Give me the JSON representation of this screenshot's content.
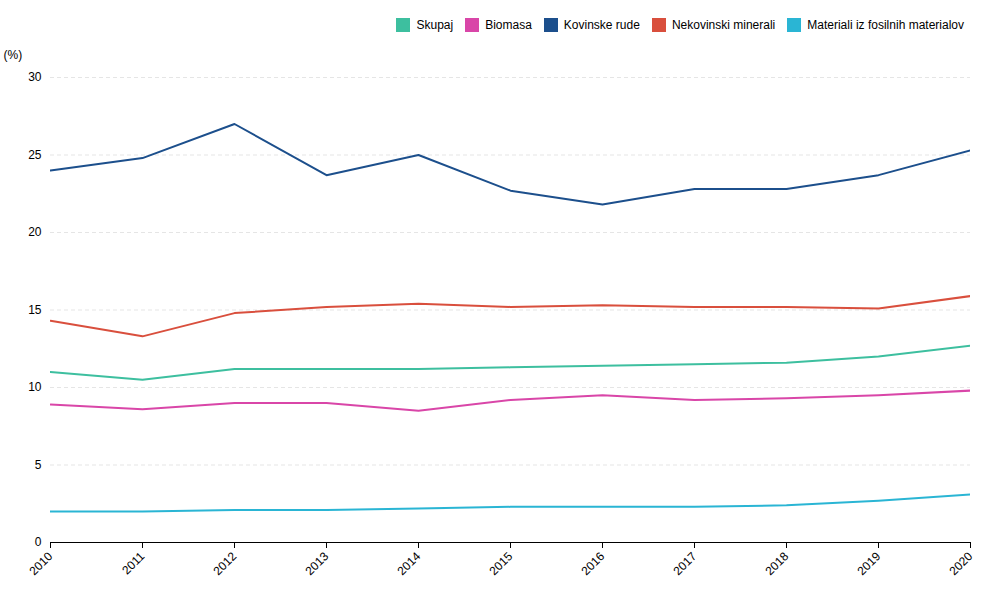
{
  "chart_data": {
    "type": "line",
    "y_label": "(%)",
    "x": [
      2010,
      2011,
      2012,
      2013,
      2014,
      2015,
      2016,
      2017,
      2018,
      2019,
      2020
    ],
    "series": [
      {
        "name": "Skupaj",
        "color": "#3dbf9f",
        "values": [
          11.0,
          10.5,
          11.2,
          11.2,
          11.2,
          11.3,
          11.4,
          11.5,
          11.6,
          12.0,
          12.7
        ]
      },
      {
        "name": "Biomasa",
        "color": "#d946a8",
        "values": [
          8.9,
          8.6,
          9.0,
          9.0,
          8.5,
          9.2,
          9.5,
          9.2,
          9.3,
          9.5,
          9.8
        ]
      },
      {
        "name": "Kovinske rude",
        "color": "#1c4f8c",
        "values": [
          24.0,
          24.8,
          27.0,
          23.7,
          25.0,
          22.7,
          21.8,
          22.8,
          22.8,
          23.7,
          25.3
        ]
      },
      {
        "name": "Nekovinski minerali",
        "color": "#d94f3d",
        "values": [
          14.3,
          13.3,
          14.8,
          15.2,
          15.4,
          15.2,
          15.3,
          15.2,
          15.2,
          15.1,
          15.9
        ]
      },
      {
        "name": "Materiali iz fosilnih materialov",
        "color": "#2ab5d4",
        "values": [
          2.0,
          2.0,
          2.1,
          2.1,
          2.2,
          2.3,
          2.3,
          2.3,
          2.4,
          2.7,
          3.1
        ]
      }
    ],
    "xlim": [
      2010,
      2020
    ],
    "xticks": [
      2010,
      2011,
      2012,
      2013,
      2014,
      2015,
      2016,
      2017,
      2018,
      2019,
      2020
    ],
    "ylim": [
      0,
      30
    ],
    "yticks": [
      0,
      5,
      10,
      15,
      20,
      25,
      30
    ],
    "grid": true,
    "legend": "upper right"
  }
}
